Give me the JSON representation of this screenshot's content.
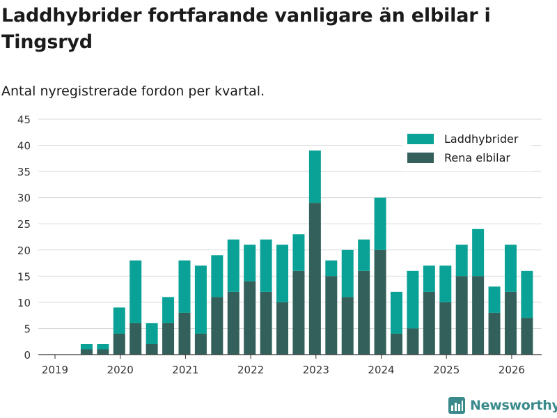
{
  "chart_data": {
    "type": "bar",
    "stacked": true,
    "title": "Laddhybrider fortfarande vanligare än elbilar i Tingsryd",
    "subtitle": "Antal nyregistrerade fordon per kvartal.",
    "xlabel": "",
    "ylabel": "",
    "ylim": [
      0,
      45
    ],
    "y_ticks": [
      0,
      5,
      10,
      15,
      20,
      25,
      30,
      35,
      40,
      45
    ],
    "x_ticks": [
      "2019",
      "2020",
      "2021",
      "2022",
      "2023",
      "2024",
      "2025",
      "2026"
    ],
    "legend_position": "top-right",
    "categories": [
      "2019 Q2",
      "2019 Q3",
      "2019 Q4",
      "2020 Q1",
      "2020 Q2",
      "2020 Q3",
      "2020 Q4",
      "2021 Q1",
      "2021 Q2",
      "2021 Q3",
      "2021 Q4",
      "2022 Q1",
      "2022 Q2",
      "2022 Q3",
      "2022 Q4",
      "2023 Q1",
      "2023 Q2",
      "2023 Q3",
      "2023 Q4",
      "2024 Q1",
      "2024 Q2",
      "2024 Q3",
      "2024 Q4",
      "2025 Q1",
      "2025 Q2",
      "2025 Q3",
      "2025 Q4",
      "2026 Q1"
    ],
    "series": [
      {
        "name": "Rena elbilar",
        "color": "#33605a",
        "values": [
          1,
          1,
          4,
          6,
          2,
          6,
          8,
          4,
          11,
          12,
          14,
          12,
          10,
          16,
          29,
          15,
          11,
          16,
          20,
          4,
          5,
          12,
          10,
          15,
          15,
          8,
          12,
          7
        ]
      },
      {
        "name": "Laddhybrider",
        "color": "#0aa296",
        "values": [
          1,
          1,
          5,
          12,
          4,
          5,
          10,
          13,
          8,
          10,
          7,
          10,
          11,
          7,
          10,
          3,
          9,
          6,
          10,
          8,
          11,
          5,
          7,
          6,
          9,
          5,
          9,
          9
        ]
      }
    ]
  },
  "brand": {
    "name": "Newsworthy",
    "color": "#3a8a8c"
  }
}
